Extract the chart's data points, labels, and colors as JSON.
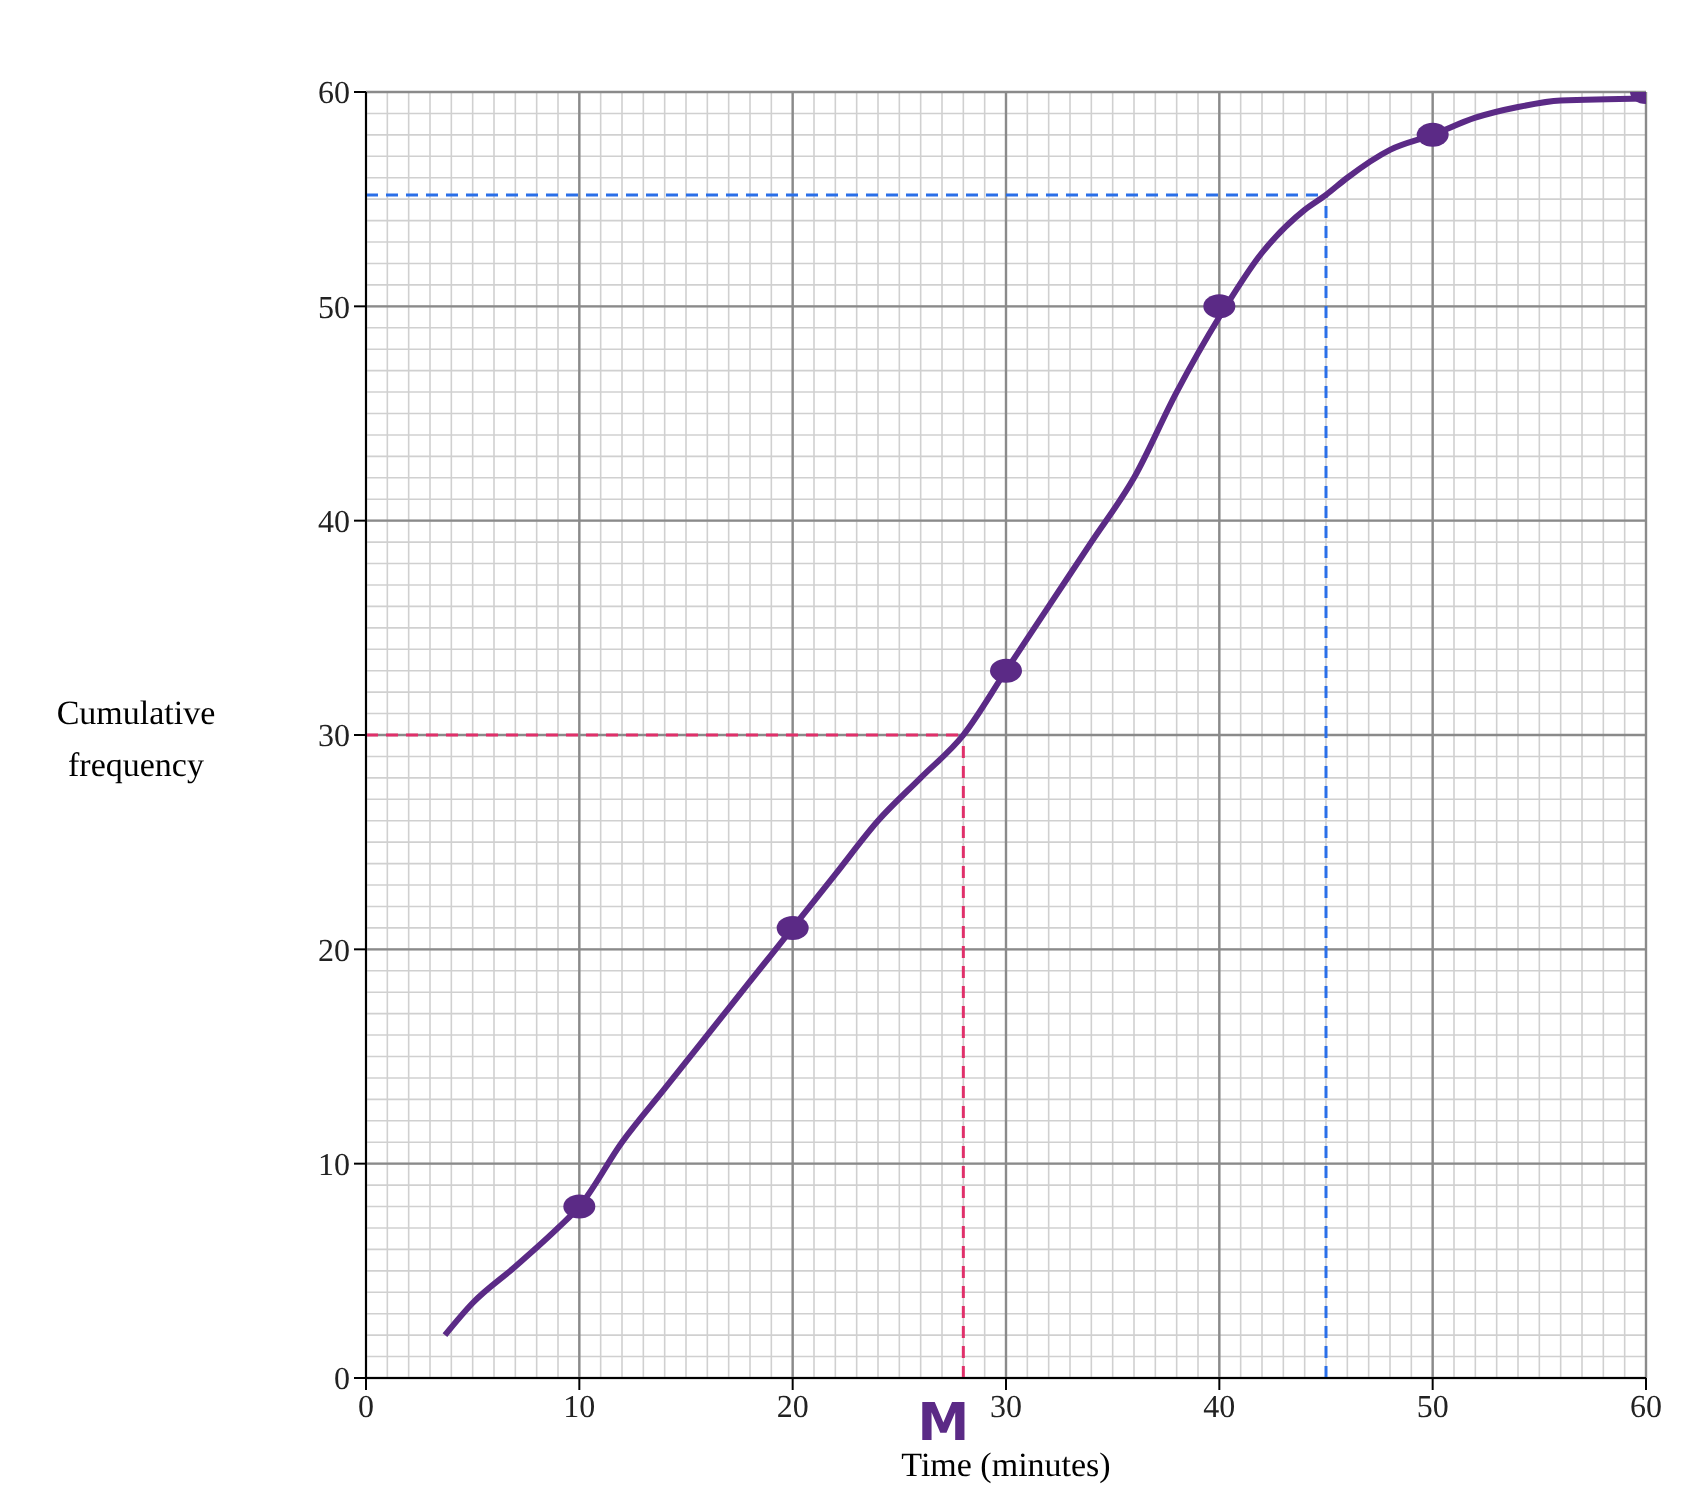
{
  "chart_data": {
    "type": "line",
    "xlabel": "Time (minutes)",
    "ylabel": "Cumulative frequency",
    "series": [
      {
        "color": "#5b2a86",
        "x": [
          3.7,
          5,
          7,
          9,
          10,
          12,
          14,
          16,
          18,
          20,
          22,
          24,
          26,
          28,
          30,
          32,
          34,
          36,
          38,
          40,
          42,
          44,
          45,
          46,
          48,
          50,
          52,
          54,
          56,
          60
        ],
        "values": [
          2,
          3.5,
          5.2,
          7,
          8,
          11,
          13.5,
          16,
          18.5,
          21,
          23.5,
          26,
          28,
          30,
          33,
          36,
          39,
          42,
          46,
          49.5,
          52.5,
          54.5,
          55.2,
          56,
          57.3,
          58,
          58.8,
          59.3,
          59.6,
          59.7
        ]
      },
      {
        "type": "scatter",
        "color": "#5b2a86",
        "x": [
          10,
          20,
          30,
          40,
          50,
          60
        ],
        "values": [
          8,
          21,
          33,
          50,
          58,
          60
        ]
      }
    ],
    "xlim": [
      0,
      60
    ],
    "xticks": [
      0,
      10,
      20,
      30,
      40,
      50,
      60
    ],
    "ylim": [
      0,
      60
    ],
    "yticks": [
      0,
      10,
      20,
      30,
      40,
      50,
      60
    ],
    "grid": true,
    "ref_lines": [
      {
        "axis": "y",
        "value": 30,
        "color": "#e0306a",
        "line_style": "dashed"
      },
      {
        "axis": "x",
        "value": 28,
        "color": "#e0306a",
        "line_style": "dashed"
      },
      {
        "axis": "y",
        "value": 55.2,
        "color": "#2a6fe8",
        "line_style": "dashed"
      },
      {
        "axis": "x",
        "value": 45,
        "color": "#2a6fe8",
        "line_style": "dashed"
      }
    ],
    "annotations": [
      {
        "text": "M",
        "x": 28,
        "y": 0
      }
    ]
  }
}
